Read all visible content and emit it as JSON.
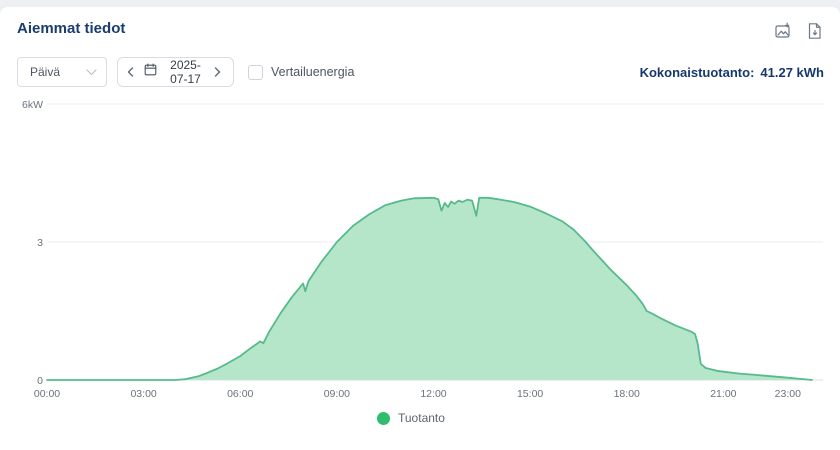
{
  "header": {
    "title": "Aiemmat tiedot",
    "icons": [
      {
        "name": "export-image-icon"
      },
      {
        "name": "export-file-icon"
      }
    ]
  },
  "controls": {
    "period_select": {
      "value": "Päivä"
    },
    "date_picker": {
      "value": "2025-07-17"
    },
    "comparison_checkbox": {
      "label": "Vertailuenergia",
      "checked": false
    },
    "total": {
      "label": "Kokonaistuotanto:",
      "value": "41.27 kWh"
    }
  },
  "chart_data": {
    "type": "area",
    "title": "",
    "xlabel": "",
    "ylabel": "kW",
    "xlim_hours": [
      0,
      24
    ],
    "ylim": [
      0,
      6
    ],
    "grid": "horizontal",
    "legend_position": "bottom-center",
    "colors": {
      "line": "#55bb8b",
      "fill": "#b5e6ca",
      "legend_dot": "#2ebd6e"
    },
    "y_ticks": [
      {
        "v": 0,
        "label": "0"
      },
      {
        "v": 3,
        "label": "3"
      },
      {
        "v": 6,
        "label": "6kW"
      }
    ],
    "x_ticks": [
      {
        "t": 0,
        "label": "00:00"
      },
      {
        "t": 3,
        "label": "03:00"
      },
      {
        "t": 6,
        "label": "06:00"
      },
      {
        "t": 9,
        "label": "09:00"
      },
      {
        "t": 12,
        "label": "12:00"
      },
      {
        "t": 15,
        "label": "15:00"
      },
      {
        "t": 18,
        "label": "18:00"
      },
      {
        "t": 21,
        "label": "21:00"
      },
      {
        "t": 23,
        "label": "23:00"
      }
    ],
    "legend": [
      {
        "name": "Tuotanto",
        "color": "#2ebd6e"
      }
    ],
    "series": [
      {
        "name": "Tuotanto",
        "unit": "kW",
        "points": [
          [
            0,
            0
          ],
          [
            0.5,
            0
          ],
          [
            1,
            0
          ],
          [
            1.5,
            0
          ],
          [
            2,
            0
          ],
          [
            2.5,
            0
          ],
          [
            3,
            0
          ],
          [
            3.5,
            0
          ],
          [
            4,
            0
          ],
          [
            4.3,
            0.02
          ],
          [
            4.7,
            0.08
          ],
          [
            5,
            0.16
          ],
          [
            5.3,
            0.25
          ],
          [
            5.6,
            0.36
          ],
          [
            6,
            0.52
          ],
          [
            6.3,
            0.68
          ],
          [
            6.5,
            0.78
          ],
          [
            6.62,
            0.84
          ],
          [
            6.72,
            0.8
          ],
          [
            6.9,
            1.05
          ],
          [
            7.25,
            1.45
          ],
          [
            7.6,
            1.8
          ],
          [
            7.95,
            2.1
          ],
          [
            8.02,
            1.93
          ],
          [
            8.12,
            2.15
          ],
          [
            8.5,
            2.55
          ],
          [
            9,
            3.0
          ],
          [
            9.5,
            3.35
          ],
          [
            10,
            3.6
          ],
          [
            10.5,
            3.8
          ],
          [
            11,
            3.9
          ],
          [
            11.4,
            3.95
          ],
          [
            12,
            3.96
          ],
          [
            12.15,
            3.93
          ],
          [
            12.25,
            3.68
          ],
          [
            12.35,
            3.85
          ],
          [
            12.45,
            3.76
          ],
          [
            12.55,
            3.88
          ],
          [
            12.65,
            3.83
          ],
          [
            12.78,
            3.9
          ],
          [
            12.9,
            3.87
          ],
          [
            13.05,
            3.92
          ],
          [
            13.2,
            3.9
          ],
          [
            13.33,
            3.57
          ],
          [
            13.42,
            3.96
          ],
          [
            13.7,
            3.96
          ],
          [
            14,
            3.93
          ],
          [
            14.5,
            3.87
          ],
          [
            15,
            3.77
          ],
          [
            15.5,
            3.62
          ],
          [
            16,
            3.45
          ],
          [
            16.35,
            3.27
          ],
          [
            16.7,
            3.02
          ],
          [
            17,
            2.78
          ],
          [
            17.5,
            2.4
          ],
          [
            18,
            2.06
          ],
          [
            18.3,
            1.83
          ],
          [
            18.5,
            1.65
          ],
          [
            18.62,
            1.5
          ],
          [
            18.8,
            1.44
          ],
          [
            19,
            1.36
          ],
          [
            19.5,
            1.19
          ],
          [
            20,
            1.05
          ],
          [
            20.12,
            1.0
          ],
          [
            20.2,
            0.8
          ],
          [
            20.3,
            0.35
          ],
          [
            20.45,
            0.26
          ],
          [
            20.8,
            0.2
          ],
          [
            21,
            0.18
          ],
          [
            21.5,
            0.14
          ],
          [
            22,
            0.11
          ],
          [
            22.5,
            0.08
          ],
          [
            23,
            0.05
          ],
          [
            23.3,
            0.03
          ],
          [
            23.6,
            0.01
          ],
          [
            23.75,
            0
          ]
        ]
      }
    ]
  }
}
